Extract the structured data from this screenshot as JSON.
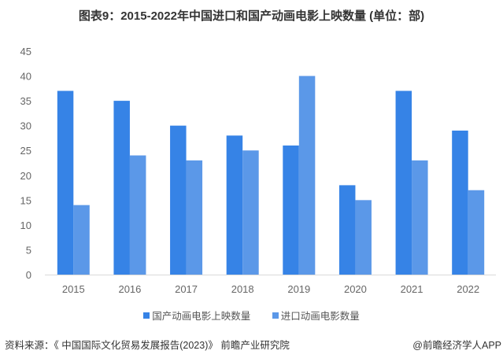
{
  "title": "图表9：2015-2022年中国进口和国产动画电影上映数量 (单位：部)",
  "source": "资料来源：《 中国国际文化贸易发展报告(2023)》 前瞻产业研究院",
  "credit": "@前瞻经济学人APP",
  "chart_data": {
    "type": "bar",
    "title": "图表9：2015-2022年中国进口和国产动画电影上映数量 (单位：部)",
    "categories": [
      "2015",
      "2016",
      "2017",
      "2018",
      "2019",
      "2020",
      "2021",
      "2022"
    ],
    "series": [
      {
        "name": "国产动画电影上映数量",
        "color": "#3683e6",
        "values": [
          37,
          35,
          30,
          28,
          26,
          18,
          37,
          29
        ]
      },
      {
        "name": "进口动画电影数量",
        "color": "#5b98e8",
        "values": [
          14,
          24,
          23,
          25,
          40,
          15,
          23,
          17
        ]
      }
    ],
    "ylim": [
      0,
      45
    ],
    "yticks": [
      0,
      5,
      10,
      15,
      20,
      25,
      30,
      35,
      40,
      45
    ],
    "grid": false,
    "legend": "bottom"
  }
}
